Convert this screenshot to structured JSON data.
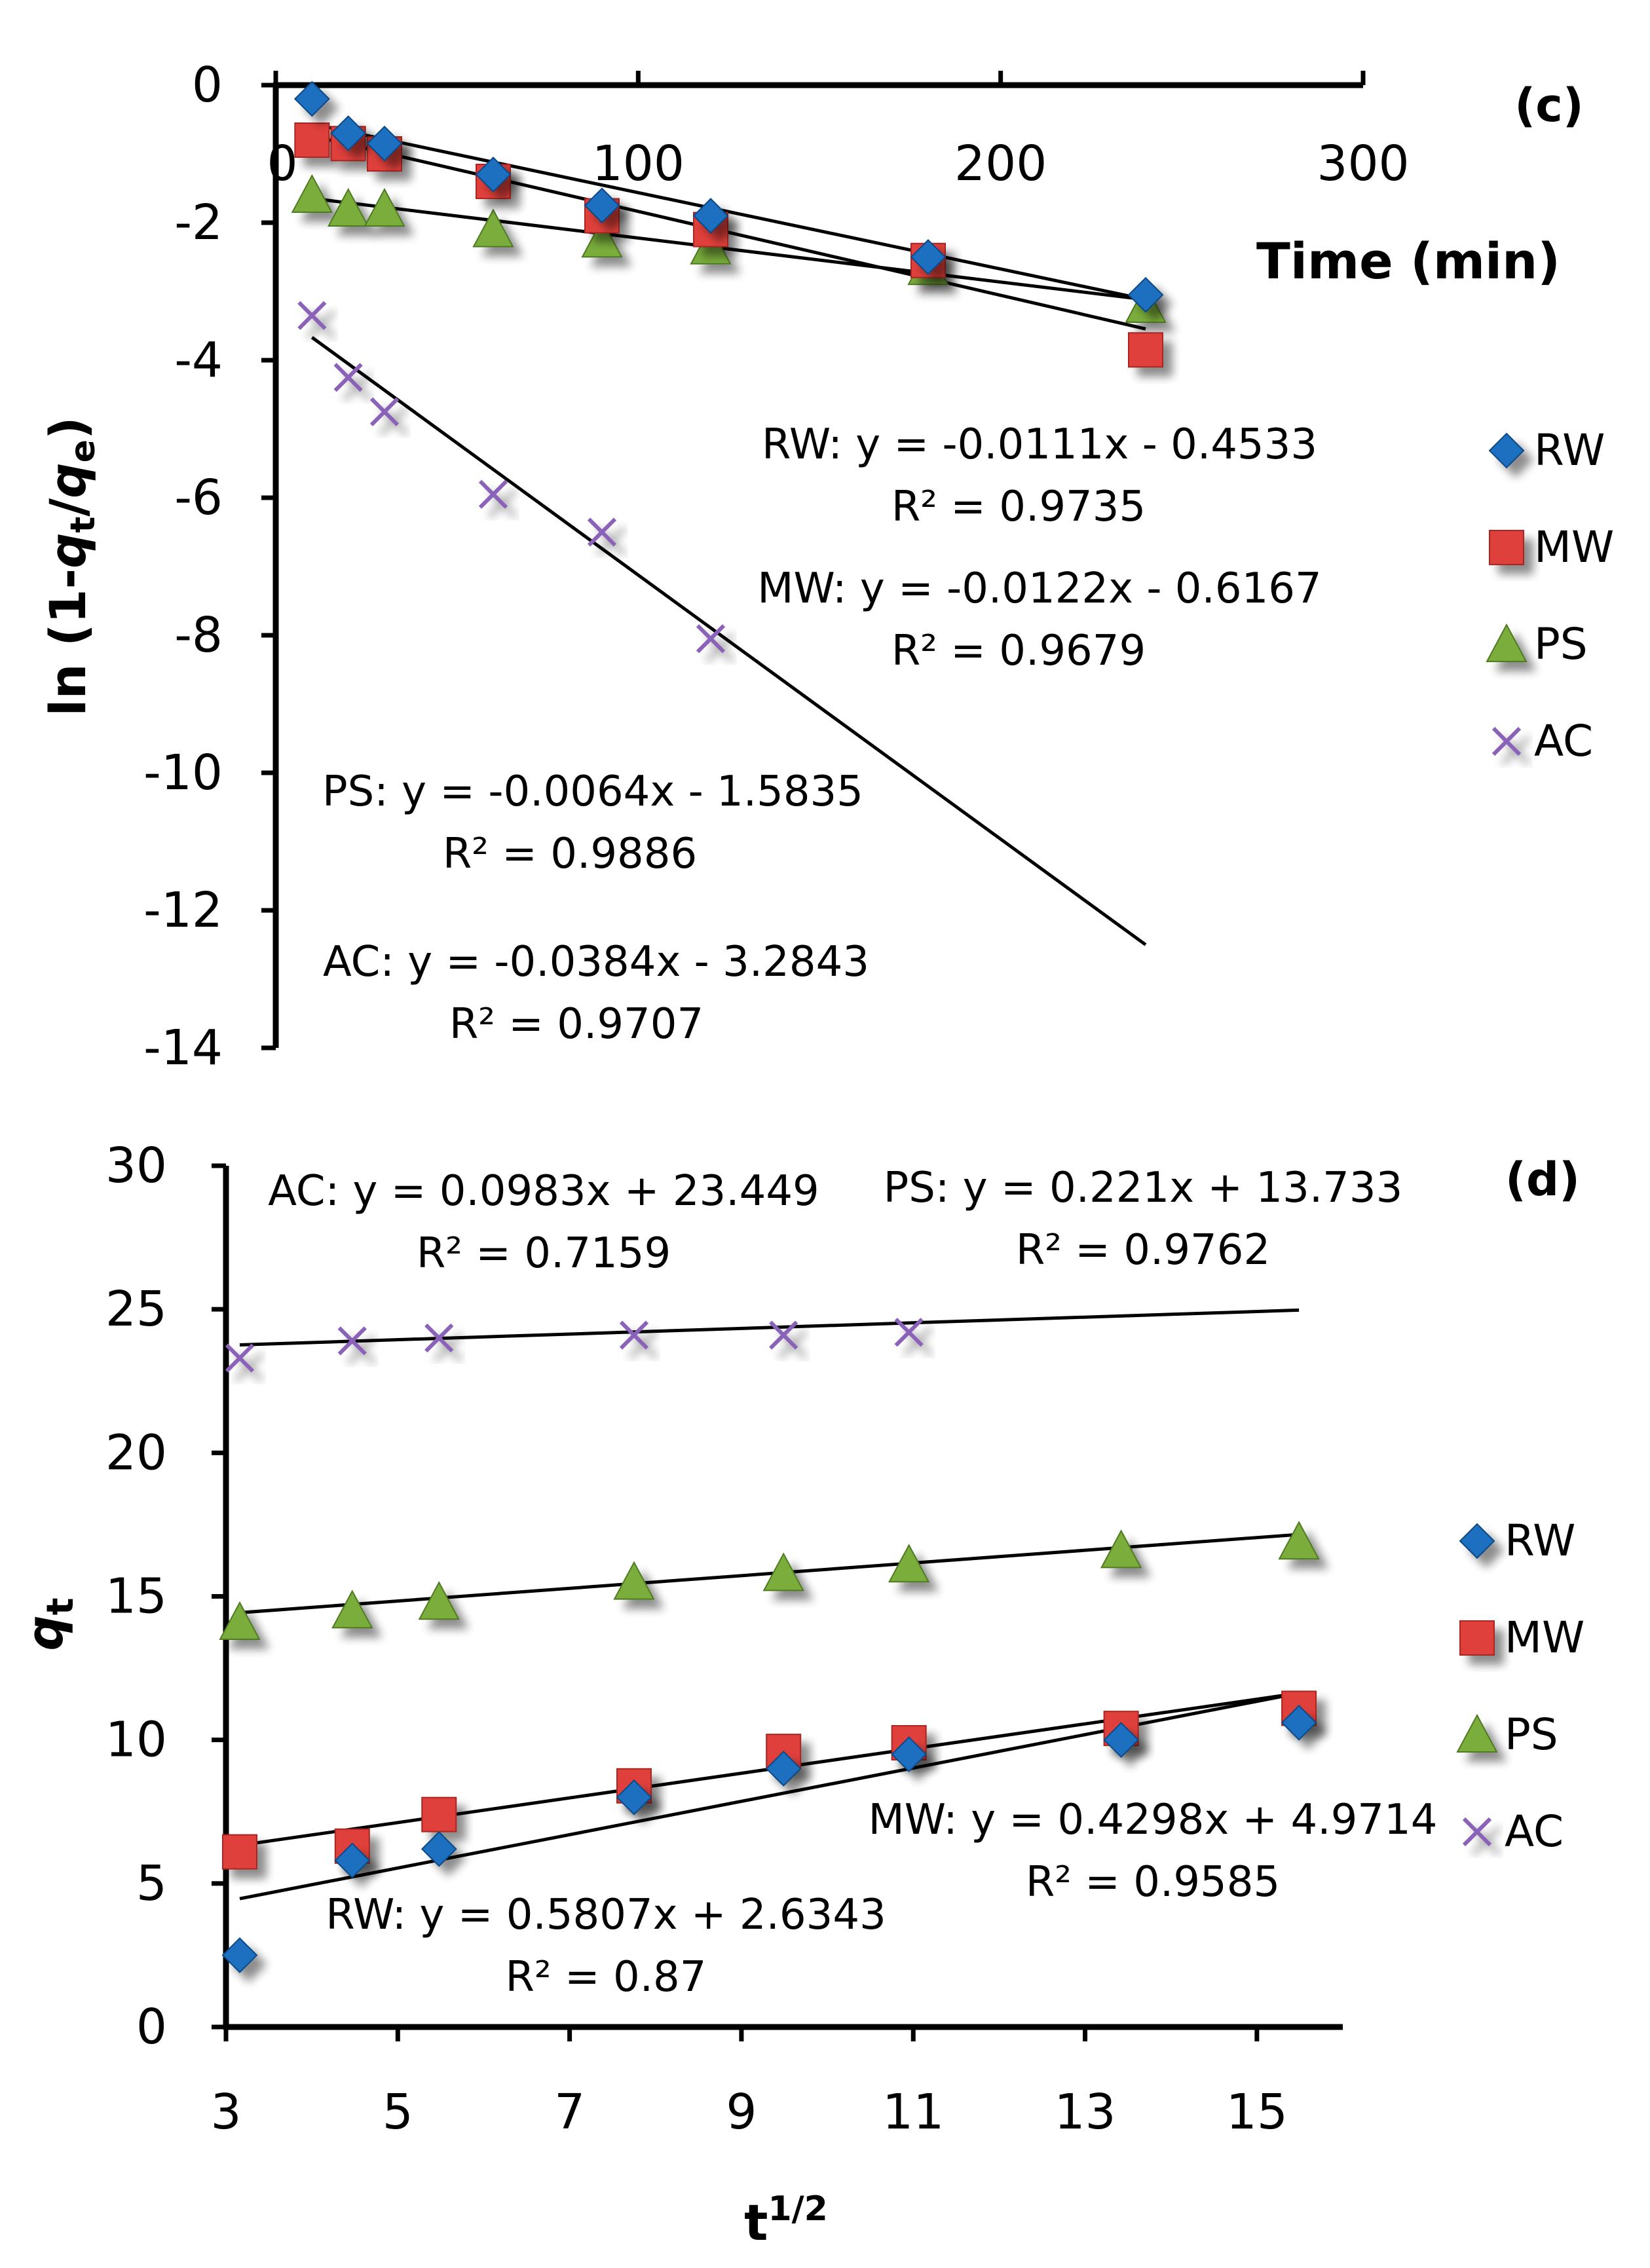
{
  "colors": {
    "RW": "#1f6fbf",
    "MW": "#e0403a",
    "PS": "#7aad3a",
    "AC": "#8a63b8",
    "axis": "#000000",
    "fit": "#000000"
  },
  "chart_data": [
    {
      "type": "scatter",
      "panel_label": "(c)",
      "xlabel": "Time (min)",
      "ylabel": "ln (1-qt/qe)",
      "xlim": [
        0,
        300
      ],
      "ylim": [
        -14,
        0
      ],
      "x_ticks": [
        "0",
        "100",
        "200",
        "300"
      ],
      "x_tick_values": [
        0,
        100,
        200,
        300
      ],
      "y_ticks": [
        "0",
        "-2",
        "-4",
        "-6",
        "-8",
        "-10",
        "-12",
        "-14"
      ],
      "y_tick_values": [
        0,
        -2,
        -4,
        -6,
        -8,
        -10,
        -12,
        -14
      ],
      "legend": [
        "RW",
        "MW",
        "PS",
        "AC"
      ],
      "series": [
        {
          "name": "RW",
          "marker": "diamond",
          "x": [
            10,
            20,
            30,
            60,
            90,
            120,
            180,
            240
          ],
          "y": [
            -0.2,
            -0.7,
            -0.85,
            -1.3,
            -1.75,
            -1.9,
            -2.5,
            -3.05
          ],
          "fit": {
            "slope": -0.0111,
            "intercept": -0.4533,
            "x0": 10,
            "x1": 240
          }
        },
        {
          "name": "MW",
          "marker": "square",
          "x": [
            10,
            20,
            30,
            60,
            90,
            120,
            180,
            240
          ],
          "y": [
            -0.8,
            -0.85,
            -1.0,
            -1.4,
            -1.9,
            -2.1,
            -2.55,
            -3.85
          ],
          "fit": {
            "slope": -0.0122,
            "intercept": -0.6167,
            "x0": 10,
            "x1": 240
          }
        },
        {
          "name": "PS",
          "marker": "triangle",
          "x": [
            10,
            20,
            30,
            60,
            90,
            120,
            180,
            240
          ],
          "y": [
            -1.6,
            -1.8,
            -1.8,
            -2.1,
            -2.25,
            -2.35,
            -2.65,
            -3.2
          ],
          "fit": {
            "slope": -0.0064,
            "intercept": -1.5835,
            "x0": 10,
            "x1": 240
          }
        },
        {
          "name": "AC",
          "marker": "cross",
          "x": [
            10,
            20,
            30,
            60,
            90,
            120
          ],
          "y": [
            -3.35,
            -4.25,
            -4.75,
            -5.95,
            -6.5,
            -8.05
          ],
          "fit": {
            "slope": -0.0384,
            "intercept": -3.2843,
            "x0": 10,
            "x1": 240
          }
        }
      ],
      "equations": [
        {
          "series": "RW",
          "eq": "RW: y = -0.0111x - 0.4533",
          "r2": "R² = 0.9735"
        },
        {
          "series": "MW",
          "eq": "MW: y = -0.0122x - 0.6167",
          "r2": "R² = 0.9679"
        },
        {
          "series": "PS",
          "eq": "PS: y = -0.0064x - 1.5835",
          "r2": "R² = 0.9886"
        },
        {
          "series": "AC",
          "eq": "AC: y = -0.0384x - 3.2843",
          "r2": "R² = 0.9707"
        }
      ]
    },
    {
      "type": "scatter",
      "panel_label": "(d)",
      "xlabel": "t1/2",
      "ylabel": "qt",
      "xlim": [
        3,
        16
      ],
      "ylim": [
        0,
        30
      ],
      "x_ticks": [
        "3",
        "5",
        "7",
        "9",
        "11",
        "13",
        "15"
      ],
      "x_tick_values": [
        3,
        5,
        7,
        9,
        11,
        13,
        15
      ],
      "y_ticks": [
        "0",
        "5",
        "10",
        "15",
        "20",
        "25",
        "30"
      ],
      "y_tick_values": [
        0,
        5,
        10,
        15,
        20,
        25,
        30
      ],
      "legend": [
        "RW",
        "MW",
        "PS",
        "AC"
      ],
      "series": [
        {
          "name": "RW",
          "marker": "diamond",
          "x": [
            3.16,
            4.47,
            5.48,
            7.75,
            9.49,
            10.95,
            13.42,
            15.49
          ],
          "y": [
            2.5,
            5.8,
            6.2,
            8.0,
            9.0,
            9.5,
            10.0,
            10.6
          ],
          "fit": {
            "slope": 0.5807,
            "intercept": 2.6343,
            "x0": 3.16,
            "x1": 15.49
          }
        },
        {
          "name": "MW",
          "marker": "square",
          "x": [
            3.16,
            4.47,
            5.48,
            7.75,
            9.49,
            10.95,
            13.42,
            15.49
          ],
          "y": [
            6.1,
            6.3,
            7.4,
            8.4,
            9.6,
            9.9,
            10.4,
            11.1
          ],
          "fit": {
            "slope": 0.4298,
            "intercept": 4.9714,
            "x0": 3.16,
            "x1": 15.49
          }
        },
        {
          "name": "PS",
          "marker": "triangle",
          "x": [
            3.16,
            4.47,
            5.48,
            7.75,
            9.49,
            10.95,
            13.42,
            15.49
          ],
          "y": [
            14.1,
            14.5,
            14.8,
            15.5,
            15.8,
            16.1,
            16.6,
            16.9
          ],
          "fit": {
            "slope": 0.221,
            "intercept": 13.733,
            "x0": 3.16,
            "x1": 15.49
          }
        },
        {
          "name": "AC",
          "marker": "cross",
          "x": [
            3.16,
            4.47,
            5.48,
            7.75,
            9.49,
            10.95
          ],
          "y": [
            23.3,
            23.9,
            24.0,
            24.1,
            24.1,
            24.2
          ],
          "fit": {
            "slope": 0.0983,
            "intercept": 23.449,
            "x0": 3.16,
            "x1": 15.49
          }
        }
      ],
      "equations": [
        {
          "series": "AC",
          "eq": "AC: y = 0.0983x + 23.449",
          "r2": "R² = 0.7159"
        },
        {
          "series": "PS",
          "eq": "PS: y = 0.221x + 13.733",
          "r2": "R² = 0.9762"
        },
        {
          "series": "MW",
          "eq": "MW: y = 0.4298x + 4.9714",
          "r2": "R² = 0.9585"
        },
        {
          "series": "RW",
          "eq": "RW: y = 0.5807x + 2.6343",
          "r2": "R² = 0.87"
        }
      ]
    }
  ]
}
